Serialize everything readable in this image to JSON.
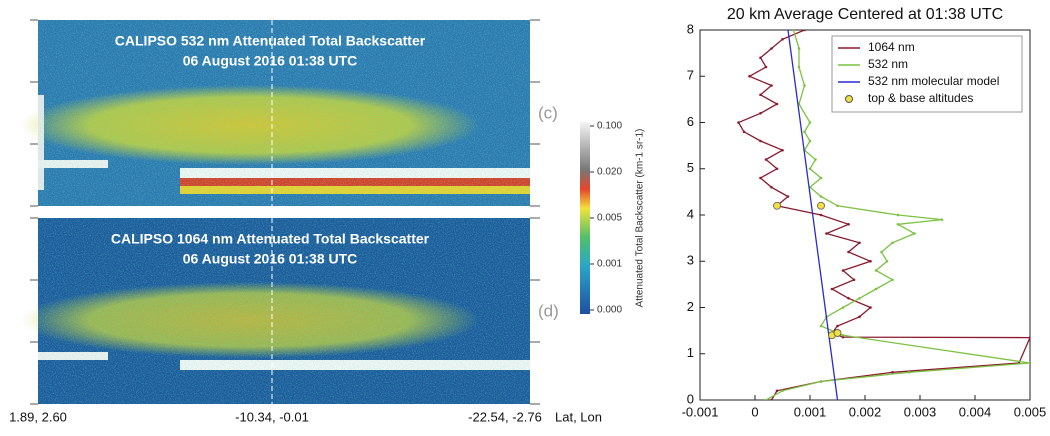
{
  "chart_data": [
    {
      "type": "curtain",
      "title": "CALIPSO 532 nm Attenuated Total Backscatter",
      "subtitle": "06 August 2016 01:38 UTC",
      "panel_label": "(c)"
    },
    {
      "type": "curtain",
      "title": "CALIPSO 1064 nm Attenuated Total Backscatter",
      "subtitle": "06 August 2016 01:38 UTC",
      "panel_label": "(d)",
      "x_tick_labels": [
        "1.89, 2.60",
        "-10.34, -0.01",
        "-22.54, -2.76"
      ],
      "x_label": "Lat, Lon"
    },
    {
      "type": "colorbar",
      "label": "Attenuated Total Backscatter (km-1 sr-1)",
      "ticks": [
        {
          "value": 0.1,
          "label": "0.100"
        },
        {
          "value": 0.02,
          "label": "0.020"
        },
        {
          "value": 0.005,
          "label": "0.005"
        },
        {
          "value": 0.001,
          "label": "0.001"
        },
        {
          "value": 0,
          "label": "0.000"
        }
      ]
    },
    {
      "type": "line",
      "title": "20 km Average Centered at 01:38 UTC",
      "xlim": [
        -0.001,
        0.005
      ],
      "ylim": [
        0,
        8
      ],
      "xticks": [
        -0.001,
        0,
        0.001,
        0.002,
        0.003,
        0.004,
        0.005
      ],
      "yticks": [
        0,
        1,
        2,
        3,
        4,
        5,
        6,
        7,
        8
      ],
      "legend": "upper right",
      "series": [
        {
          "name": "1064 nm",
          "color": "#8b1a2e",
          "marker": "dot",
          "x": [
            0.0003,
            0.0004,
            0.0012,
            0.0025,
            0.0048,
            0.005,
            0.0016,
            0.0014,
            0.0015,
            0.0019,
            0.0021,
            0.0017,
            0.0014,
            0.0018,
            0.0016,
            0.0021,
            0.0017,
            0.0019,
            0.0013,
            0.0017,
            0.0012,
            0.0004,
            0.0006,
            0.0003,
            0.0001,
            0.0004,
            0.0002,
            0.0005,
            0.0001,
            -0.0002,
            -0.0003,
            0.0001,
            0.0004,
            0.0001,
            0.0003,
            -0.0001,
            0.0002,
            0.0001,
            0.0003,
            0.0005,
            0.0009
          ],
          "values": [
            0,
            0.2,
            0.4,
            0.6,
            0.8,
            1.35,
            1.36,
            1.45,
            1.6,
            1.8,
            2.0,
            2.2,
            2.4,
            2.6,
            2.8,
            3.0,
            3.2,
            3.4,
            3.6,
            3.8,
            4.0,
            4.2,
            4.4,
            4.6,
            4.8,
            5.0,
            5.2,
            5.4,
            5.6,
            5.8,
            6.0,
            6.2,
            6.4,
            6.6,
            6.8,
            7.0,
            7.2,
            7.4,
            7.6,
            7.8,
            8.0
          ]
        },
        {
          "name": "532 nm",
          "color": "#7cc242",
          "marker": "dot",
          "x": [
            0.0002,
            0.0005,
            0.0012,
            0.0028,
            0.005,
            0.0016,
            0.0012,
            0.0013,
            0.0016,
            0.0019,
            0.0022,
            0.0025,
            0.0022,
            0.0024,
            0.0023,
            0.0025,
            0.0029,
            0.0026,
            0.0034,
            0.0026,
            0.0015,
            0.0012,
            0.001,
            0.0012,
            0.001,
            0.0011,
            0.0009,
            0.001,
            0.0009,
            0.001,
            0.0008,
            0.0009,
            0.0008,
            0.0008,
            0.0007
          ],
          "values": [
            0,
            0.2,
            0.4,
            0.6,
            0.8,
            1.4,
            1.6,
            1.8,
            2.0,
            2.2,
            2.4,
            2.6,
            2.8,
            3.0,
            3.2,
            3.4,
            3.6,
            3.8,
            3.9,
            4.0,
            4.2,
            4.4,
            4.6,
            4.8,
            5.0,
            5.2,
            5.4,
            5.6,
            5.8,
            6.0,
            6.4,
            6.8,
            7.2,
            7.6,
            8.0
          ]
        },
        {
          "name": "532 nm molecular model",
          "color": "#2a2ad0",
          "marker": "none",
          "x": [
            0.0015,
            0.0006
          ],
          "values": [
            0,
            8
          ]
        },
        {
          "name": "top & base altitudes",
          "color": "#f2e040",
          "marker": "circle",
          "x": [
            0.0004,
            0.0012,
            0.0014,
            0.0015
          ],
          "values": [
            4.2,
            4.2,
            1.4,
            1.45
          ]
        }
      ]
    }
  ]
}
